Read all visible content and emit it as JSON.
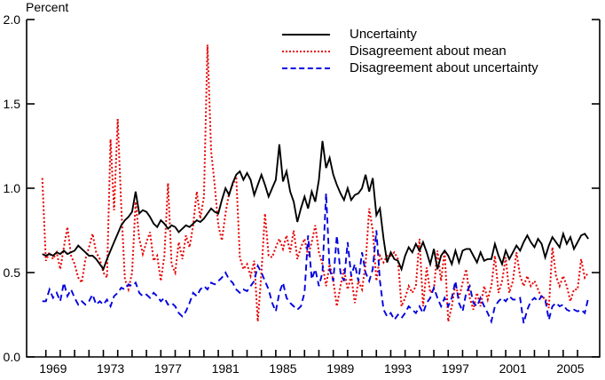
{
  "page": {
    "background": "#ffffff"
  },
  "chart_data": {
    "type": "line",
    "title": "",
    "ylabel": "Percent",
    "xlabel": "",
    "grid": false,
    "legend_position": "top-center-inside",
    "axis_color": "#000000",
    "xlim": [
      1967.66,
      2007.54
    ],
    "ylim": [
      0,
      2.0
    ],
    "x_start": 1968.75,
    "x_step": 0.25,
    "x_unit": "quarterly",
    "y_ticks": [
      0.0,
      0.5,
      1.0,
      1.5,
      2.0
    ],
    "y_tick_labels": [
      "0.0",
      "0.5",
      "1.0",
      "1.5",
      "2.0"
    ],
    "x_ticks": [
      1969,
      1970,
      1971,
      1972,
      1973,
      1974,
      1975,
      1976,
      1977,
      1978,
      1979,
      1980,
      1981,
      1982,
      1983,
      1984,
      1985,
      1986,
      1987,
      1988,
      1989,
      1990,
      1991,
      1992,
      1993,
      1994,
      1995,
      1996,
      1997,
      1998,
      1999,
      2000,
      2001,
      2002,
      2003,
      2004,
      2005,
      2006
    ],
    "x_tick_labels": [
      {
        "year": 1969,
        "label": "1969"
      },
      {
        "year": 1973,
        "label": "1973"
      },
      {
        "year": 1977,
        "label": "1977"
      },
      {
        "year": 1981,
        "label": "1981"
      },
      {
        "year": 1985,
        "label": "1985"
      },
      {
        "year": 1989,
        "label": "1989"
      },
      {
        "year": 1993,
        "label": "1993"
      },
      {
        "year": 1997,
        "label": "1997"
      },
      {
        "year": 2001,
        "label": "2001"
      },
      {
        "year": 2005,
        "label": "2005"
      }
    ],
    "legend": [
      {
        "label": "Uncertainty",
        "color": "#000000",
        "style": "solid"
      },
      {
        "label": "Disagreement about mean",
        "color": "#e60000",
        "style": "dotted"
      },
      {
        "label": "Disagreement about uncertainty",
        "color": "#0000e0",
        "style": "dashed"
      }
    ],
    "series": [
      {
        "name": "Disagreement about mean",
        "color": "#e60000",
        "style": "dotted",
        "values": [
          1.06,
          0.57,
          0.62,
          0.58,
          0.62,
          0.52,
          0.65,
          0.77,
          0.6,
          0.55,
          0.47,
          0.44,
          0.58,
          0.65,
          0.73,
          0.62,
          0.58,
          0.5,
          0.47,
          1.29,
          0.87,
          1.41,
          0.89,
          0.46,
          0.4,
          0.5,
          0.92,
          0.7,
          0.61,
          0.68,
          0.74,
          0.57,
          0.6,
          0.45,
          0.6,
          1.03,
          0.55,
          0.5,
          0.68,
          0.58,
          0.72,
          0.65,
          0.78,
          0.98,
          0.82,
          0.95,
          1.85,
          1.22,
          1.02,
          0.78,
          0.69,
          0.85,
          0.97,
          1.02,
          1.07,
          0.59,
          0.52,
          0.55,
          0.48,
          0.57,
          0.21,
          0.5,
          0.85,
          0.6,
          0.59,
          0.65,
          0.7,
          0.64,
          0.72,
          0.62,
          0.75,
          0.58,
          0.65,
          0.7,
          0.6,
          0.68,
          0.78,
          0.62,
          0.55,
          0.42,
          0.55,
          0.45,
          0.3,
          0.42,
          0.52,
          0.4,
          0.48,
          0.32,
          0.45,
          0.4,
          0.55,
          0.88,
          0.75,
          0.45,
          0.6,
          0.56,
          0.6,
          0.6,
          0.62,
          0.58,
          0.3,
          0.35,
          0.42,
          0.38,
          0.42,
          0.7,
          0.3,
          0.53,
          0.38,
          0.4,
          0.63,
          0.45,
          0.63,
          0.21,
          0.3,
          0.43,
          0.35,
          0.44,
          0.52,
          0.35,
          0.28,
          0.38,
          0.3,
          0.42,
          0.34,
          0.42,
          0.6,
          0.38,
          0.45,
          0.59,
          0.38,
          0.45,
          0.62,
          0.48,
          0.42,
          0.48,
          0.42,
          0.45,
          0.4,
          0.35,
          0.35,
          0.29,
          0.65,
          0.48,
          0.42,
          0.48,
          0.42,
          0.33,
          0.4,
          0.4,
          0.58,
          0.47,
          0.5
        ]
      },
      {
        "name": "Disagreement about uncertainty",
        "color": "#0000e0",
        "style": "dashed",
        "values": [
          0.33,
          0.33,
          0.4,
          0.35,
          0.38,
          0.33,
          0.44,
          0.36,
          0.4,
          0.35,
          0.31,
          0.33,
          0.31,
          0.33,
          0.37,
          0.31,
          0.33,
          0.31,
          0.34,
          0.3,
          0.36,
          0.38,
          0.41,
          0.4,
          0.43,
          0.42,
          0.44,
          0.38,
          0.36,
          0.37,
          0.35,
          0.38,
          0.36,
          0.33,
          0.35,
          0.31,
          0.32,
          0.3,
          0.26,
          0.24,
          0.27,
          0.32,
          0.38,
          0.36,
          0.4,
          0.42,
          0.4,
          0.44,
          0.43,
          0.45,
          0.47,
          0.5,
          0.46,
          0.44,
          0.4,
          0.38,
          0.4,
          0.39,
          0.42,
          0.45,
          0.54,
          0.5,
          0.45,
          0.4,
          0.32,
          0.27,
          0.38,
          0.44,
          0.35,
          0.32,
          0.3,
          0.28,
          0.3,
          0.38,
          0.72,
          0.46,
          0.52,
          0.42,
          0.5,
          0.97,
          0.52,
          0.45,
          0.72,
          0.5,
          0.45,
          0.68,
          0.48,
          0.55,
          0.45,
          0.62,
          0.5,
          0.45,
          0.52,
          0.75,
          0.45,
          0.28,
          0.24,
          0.26,
          0.22,
          0.25,
          0.23,
          0.26,
          0.3,
          0.28,
          0.26,
          0.3,
          0.26,
          0.32,
          0.35,
          0.41,
          0.35,
          0.3,
          0.35,
          0.3,
          0.35,
          0.45,
          0.32,
          0.27,
          0.38,
          0.42,
          0.32,
          0.3,
          0.35,
          0.3,
          0.26,
          0.21,
          0.3,
          0.33,
          0.35,
          0.33,
          0.36,
          0.34,
          0.34,
          0.35,
          0.2,
          0.28,
          0.33,
          0.35,
          0.33,
          0.36,
          0.34,
          0.22,
          0.3,
          0.32,
          0.3,
          0.31,
          0.28,
          0.27,
          0.28,
          0.27,
          0.28,
          0.26,
          0.35
        ]
      },
      {
        "name": "Uncertainty",
        "color": "#000000",
        "style": "solid",
        "values": [
          0.61,
          0.6,
          0.61,
          0.6,
          0.62,
          0.61,
          0.63,
          0.61,
          0.62,
          0.63,
          0.66,
          0.64,
          0.62,
          0.6,
          0.6,
          0.58,
          0.55,
          0.52,
          0.58,
          0.63,
          0.68,
          0.73,
          0.78,
          0.81,
          0.83,
          0.86,
          0.98,
          0.85,
          0.87,
          0.86,
          0.83,
          0.79,
          0.77,
          0.81,
          0.79,
          0.76,
          0.78,
          0.77,
          0.74,
          0.76,
          0.78,
          0.77,
          0.79,
          0.81,
          0.8,
          0.82,
          0.85,
          0.88,
          0.86,
          0.85,
          0.93,
          1.0,
          0.96,
          1.03,
          1.08,
          1.1,
          1.05,
          1.09,
          1.05,
          0.96,
          1.02,
          1.08,
          1.02,
          0.95,
          1.0,
          1.05,
          1.26,
          1.04,
          1.1,
          0.98,
          0.92,
          0.8,
          0.88,
          0.95,
          0.88,
          0.98,
          0.92,
          1.05,
          1.28,
          1.12,
          1.18,
          1.08,
          1.02,
          0.97,
          0.93,
          1.0,
          0.93,
          0.96,
          0.97,
          1.0,
          1.08,
          0.98,
          1.06,
          0.84,
          0.88,
          0.7,
          0.56,
          0.62,
          0.58,
          0.57,
          0.52,
          0.6,
          0.65,
          0.62,
          0.67,
          0.63,
          0.68,
          0.62,
          0.55,
          0.64,
          0.52,
          0.6,
          0.63,
          0.6,
          0.55,
          0.63,
          0.56,
          0.63,
          0.64,
          0.64,
          0.6,
          0.56,
          0.62,
          0.57,
          0.58,
          0.58,
          0.67,
          0.6,
          0.55,
          0.63,
          0.58,
          0.62,
          0.66,
          0.63,
          0.68,
          0.72,
          0.68,
          0.65,
          0.7,
          0.67,
          0.59,
          0.66,
          0.71,
          0.68,
          0.65,
          0.73,
          0.67,
          0.71,
          0.64,
          0.68,
          0.72,
          0.73,
          0.7
        ]
      }
    ]
  }
}
